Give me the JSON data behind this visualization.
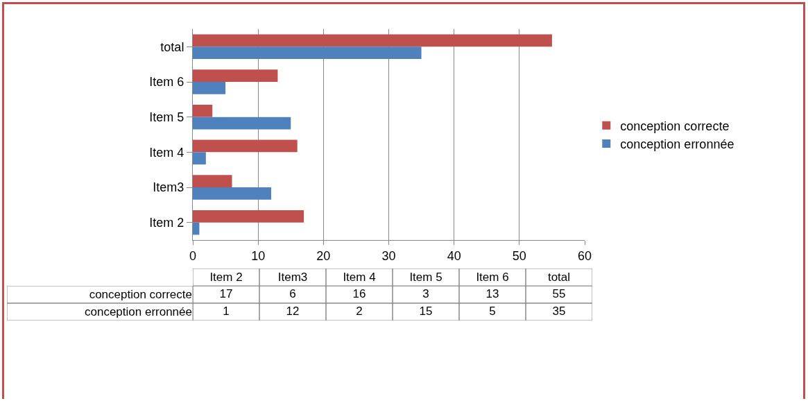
{
  "chart_data": [
    {
      "type": "bar",
      "orientation": "horizontal",
      "categories": [
        "total",
        "Item 6",
        "Item 5",
        "Item 4",
        "Item3",
        "Item 2"
      ],
      "series": [
        {
          "name": "conception correcte",
          "color": "#c0504d",
          "values": [
            55,
            13,
            3,
            16,
            6,
            17
          ]
        },
        {
          "name": "conception erronnée",
          "color": "#4f81bd",
          "values": [
            35,
            5,
            15,
            2,
            12,
            1
          ]
        }
      ],
      "xlim": [
        0,
        60
      ],
      "xticks": [
        0,
        10,
        20,
        30,
        40,
        50,
        60
      ],
      "grid": "x",
      "legend": "right"
    },
    {
      "type": "heatmap",
      "categories": [
        "Item 2",
        "Item3",
        "Item 4",
        "Item 5",
        "Item 6",
        "total"
      ],
      "y_categories": [
        "conception correcte",
        "conception erronnée"
      ],
      "cells": [
        [
          17,
          6,
          16,
          3,
          13,
          55
        ],
        [
          1,
          12,
          2,
          15,
          5,
          35
        ]
      ],
      "data_labels": true
    }
  ]
}
